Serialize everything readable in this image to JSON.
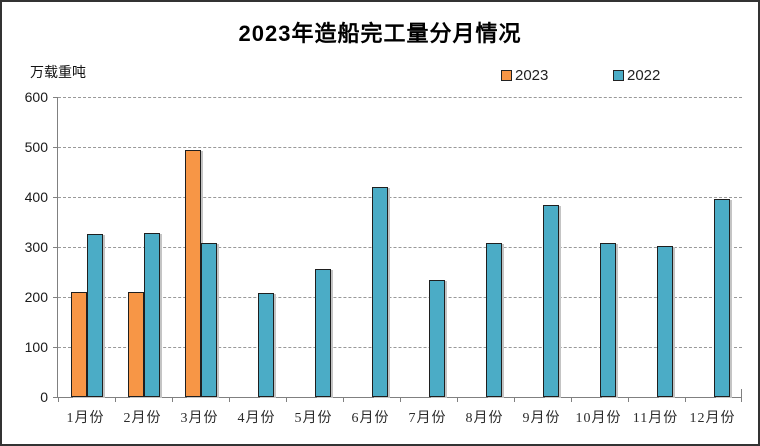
{
  "chart": {
    "title": "2023年造船完工量分月情况",
    "unit_label": "万载重吨"
  },
  "chart_data": {
    "type": "bar",
    "title": "2023年造船完工量分月情况",
    "ylabel": "万载重吨",
    "xlabel": "",
    "categories": [
      "1月份",
      "2月份",
      "3月份",
      "4月份",
      "5月份",
      "6月份",
      "7月份",
      "8月份",
      "9月份",
      "10月份",
      "11月份",
      "12月份"
    ],
    "series": [
      {
        "name": "2023",
        "color": "#F79646",
        "values": [
          211,
          210,
          495,
          null,
          null,
          null,
          null,
          null,
          null,
          null,
          null,
          null
        ]
      },
      {
        "name": "2022",
        "color": "#4BACC6",
        "values": [
          326,
          329,
          308,
          209,
          257,
          421,
          235,
          309,
          385,
          308,
          303,
          397
        ]
      }
    ],
    "ylim": [
      0,
      600
    ],
    "ytick_step": 100,
    "grid": "horizontal-dashed",
    "legend_position": "inside-top-right"
  }
}
